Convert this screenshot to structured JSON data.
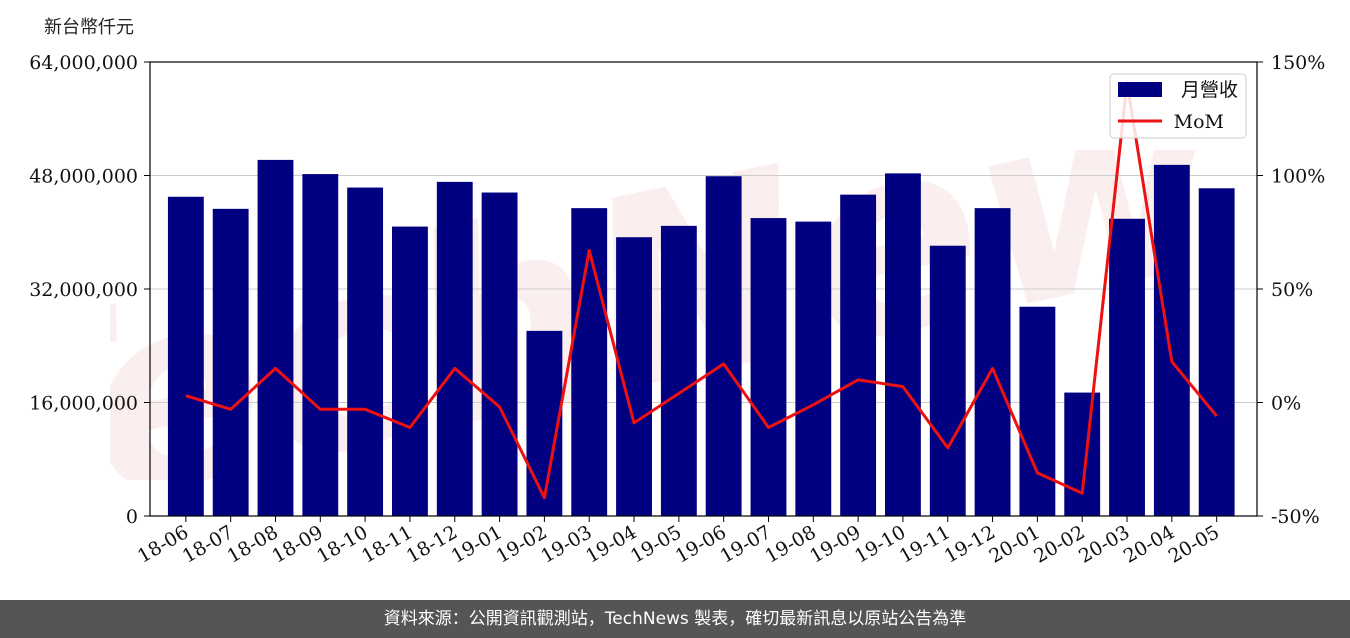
{
  "colors": {
    "bar": "#000080",
    "line": "#ee1111",
    "grid": "#cccccc",
    "footer_bg": "#555555",
    "watermark": "#e8a0a0"
  },
  "watermark": {
    "text": "TechNews"
  },
  "footer": {
    "text": "資料來源：公開資訊觀測站，TechNews 製表，確切最新訊息以原站公告為準"
  },
  "chart_data": {
    "type": "bar",
    "title": "",
    "ylabel": "新台幣仟元",
    "ylim": [
      0,
      64000000
    ],
    "y2lim": [
      -50,
      150
    ],
    "yticks": [
      "0",
      "16,000,000",
      "32,000,000",
      "48,000,000",
      "64,000,000"
    ],
    "y2ticks": [
      "-50%",
      "0%",
      "50%",
      "100%",
      "150%"
    ],
    "grid": true,
    "legend_position": "top-right",
    "categories": [
      "18-06",
      "18-07",
      "18-08",
      "18-09",
      "18-10",
      "18-11",
      "18-12",
      "19-01",
      "19-02",
      "19-03",
      "19-04",
      "19-05",
      "19-06",
      "19-07",
      "19-08",
      "19-09",
      "19-10",
      "19-11",
      "19-12",
      "20-01",
      "20-02",
      "20-03",
      "20-04",
      "20-05"
    ],
    "series": [
      {
        "name": "月營收",
        "type": "bar",
        "axis": "left",
        "values": [
          45000000,
          43300000,
          50200000,
          48200000,
          46300000,
          40800000,
          47100000,
          45600000,
          26100000,
          43400000,
          39300000,
          40900000,
          47900000,
          42000000,
          41500000,
          45300000,
          48300000,
          38100000,
          43400000,
          29500000,
          17400000,
          41900000,
          49500000,
          46200000
        ]
      },
      {
        "name": "MoM",
        "type": "line",
        "axis": "right",
        "values": [
          3,
          -3,
          15,
          -3,
          -3,
          -11,
          15,
          -2,
          -42,
          67,
          -9,
          4,
          17,
          -11,
          -1,
          10,
          7,
          -20,
          15,
          -31,
          -40,
          141,
          18,
          -6
        ]
      }
    ]
  }
}
